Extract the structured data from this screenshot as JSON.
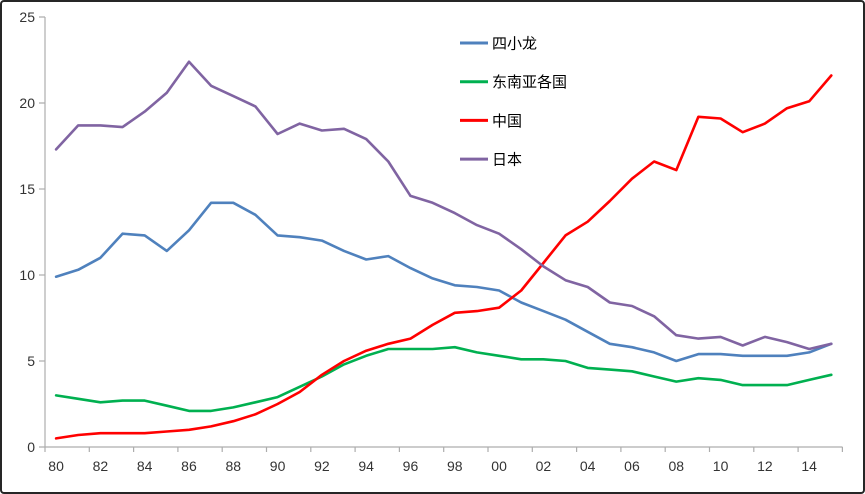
{
  "chart_data": {
    "type": "line",
    "title": "",
    "xlabel": "",
    "ylabel": "",
    "grid": false,
    "legend_position": "top-center",
    "x_start_year": 1980,
    "x_end_year": 2015,
    "x_tick_labels": [
      "80",
      "82",
      "84",
      "86",
      "88",
      "90",
      "92",
      "94",
      "96",
      "98",
      "00",
      "02",
      "04",
      "06",
      "08",
      "10",
      "12",
      "14"
    ],
    "y_ticks": [
      "0",
      "5",
      "10",
      "15",
      "20",
      "25"
    ],
    "y_axis_range": [
      0,
      25
    ],
    "axis_color": "#ADADAD",
    "series": [
      {
        "key": "tigers",
        "name": "四小龙",
        "color": "#4F81BD",
        "values": [
          9.9,
          10.3,
          11.0,
          12.4,
          12.3,
          11.4,
          12.6,
          14.2,
          14.2,
          13.5,
          12.3,
          12.2,
          12.0,
          11.4,
          10.9,
          11.1,
          10.4,
          9.8,
          9.4,
          9.3,
          9.1,
          8.4,
          7.9,
          7.4,
          6.7,
          6.0,
          5.8,
          5.5,
          5.0,
          5.4,
          5.4,
          5.3,
          5.3,
          5.3,
          5.5,
          6.0
        ]
      },
      {
        "key": "asean",
        "name": "东南亚各国",
        "color": "#00B050",
        "values": [
          3.0,
          2.8,
          2.6,
          2.7,
          2.7,
          2.4,
          2.1,
          2.1,
          2.3,
          2.6,
          2.9,
          3.5,
          4.1,
          4.8,
          5.3,
          5.7,
          5.7,
          5.7,
          5.8,
          5.5,
          5.3,
          5.1,
          5.1,
          5.0,
          4.6,
          4.5,
          4.4,
          4.1,
          3.8,
          4.0,
          3.9,
          3.6,
          3.6,
          3.6,
          3.9,
          4.2
        ]
      },
      {
        "key": "china",
        "name": "中国",
        "color": "#FF0000",
        "values": [
          0.5,
          0.7,
          0.8,
          0.8,
          0.8,
          0.9,
          1.0,
          1.2,
          1.5,
          1.9,
          2.5,
          3.2,
          4.2,
          5.0,
          5.6,
          6.0,
          6.3,
          7.1,
          7.8,
          7.9,
          8.1,
          9.1,
          10.7,
          12.3,
          13.1,
          14.3,
          15.6,
          16.6,
          16.1,
          19.2,
          19.1,
          18.3,
          18.8,
          19.7,
          20.1,
          21.6
        ]
      },
      {
        "key": "japan",
        "name": "日本",
        "color": "#8064A2",
        "values": [
          17.3,
          18.7,
          18.7,
          18.6,
          19.5,
          20.6,
          22.4,
          21.0,
          20.4,
          19.8,
          18.2,
          18.8,
          18.4,
          18.5,
          17.9,
          16.6,
          14.6,
          14.2,
          13.6,
          12.9,
          12.4,
          11.5,
          10.5,
          9.7,
          9.3,
          8.4,
          8.2,
          7.6,
          6.5,
          6.3,
          6.4,
          5.9,
          6.4,
          6.1,
          5.7,
          6.0
        ]
      }
    ]
  }
}
